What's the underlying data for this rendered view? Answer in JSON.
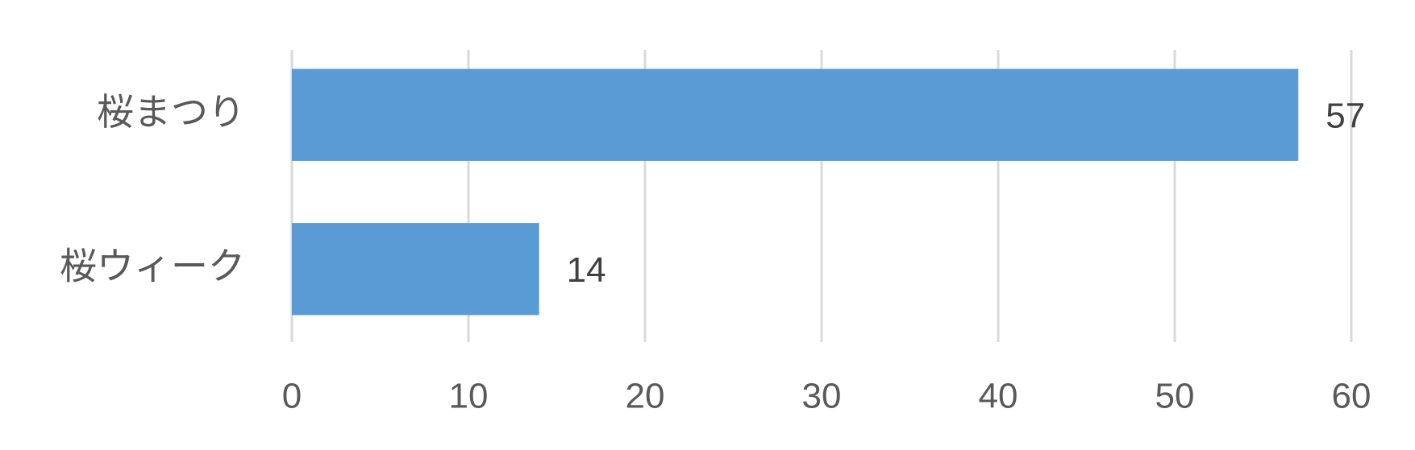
{
  "chart_data": {
    "type": "bar",
    "orientation": "horizontal",
    "categories": [
      "桜まつり",
      "桜ウィーク"
    ],
    "values": [
      57,
      14
    ],
    "color": "#5b9bd5",
    "xlim": [
      0,
      60
    ],
    "xticks": [
      0,
      10,
      20,
      30,
      40,
      50,
      60
    ],
    "grid": true
  }
}
